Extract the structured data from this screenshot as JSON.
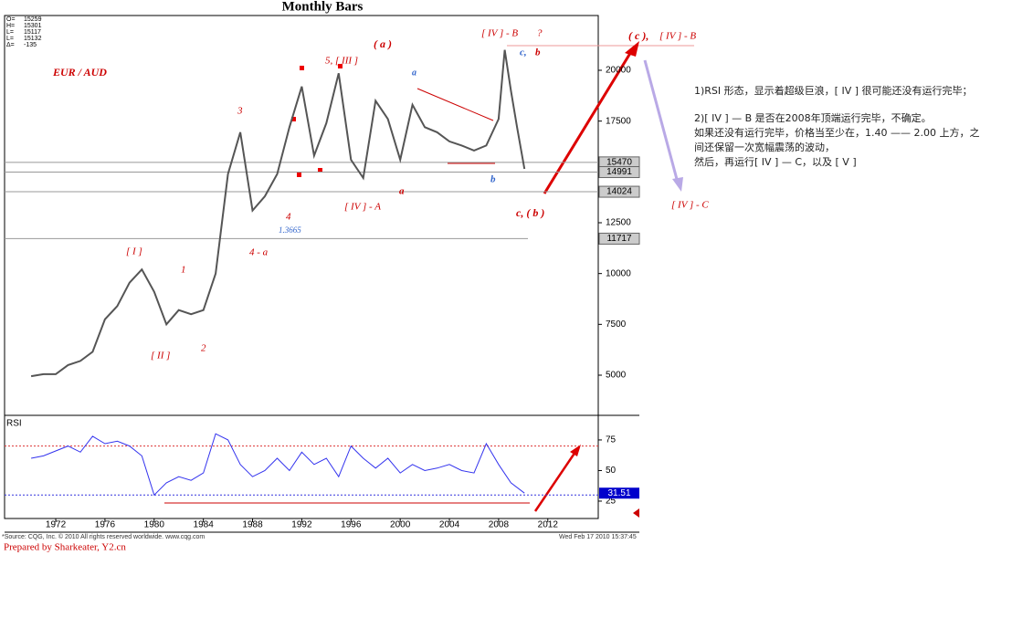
{
  "chart_data": [
    {
      "type": "line",
      "title": "Monthly Bars",
      "color": "#555555",
      "x": [
        1970,
        1971,
        1972,
        1973,
        1974,
        1975,
        1976,
        1977,
        1978,
        1979,
        1980,
        1981,
        1982,
        1983,
        1984,
        1985,
        1986,
        1987,
        1988,
        1989,
        1990,
        1991,
        1992,
        1993,
        1994,
        1995,
        1996,
        1997,
        1998,
        1999,
        2000,
        2001,
        2002,
        2003,
        2004,
        2005,
        2006,
        2007,
        2008,
        2008.5,
        2009,
        2009.5,
        2010.1
      ],
      "values": [
        4950,
        5050,
        5050,
        5500,
        5700,
        6150,
        7750,
        8400,
        9550,
        10200,
        9100,
        7500,
        8200,
        8000,
        8200,
        10000,
        14900,
        16950,
        13100,
        13800,
        14900,
        17200,
        19200,
        15800,
        17400,
        19850,
        15600,
        14700,
        18500,
        17600,
        15600,
        18300,
        17200,
        16950,
        16500,
        16300,
        16050,
        16300,
        17600,
        21000,
        19000,
        17200,
        15150
      ],
      "xlim": [
        1967.84,
        2016.1
      ],
      "ylim": [
        3024,
        22694
      ],
      "yticks": [
        5000,
        7500,
        10000,
        12500,
        15000,
        17500,
        20000
      ],
      "levels": [
        15470,
        14991,
        14024,
        11717
      ],
      "ohlc": [
        {
          "label": "O=",
          "value": 15259
        },
        {
          "label": "H=",
          "value": 15301
        },
        {
          "label": "L=",
          "value": 15117
        },
        {
          "label": "L=",
          "value": 15132
        },
        {
          "label": "Δ=",
          "value": -135
        }
      ],
      "annotations": [
        "EUR / AUD",
        "[ I ]",
        "[ II ]",
        "1",
        "2",
        "3",
        "4",
        "4 - a",
        "1.3665",
        "5, [ III ]",
        "( a )",
        "a",
        "[ IV ] - A",
        "a",
        "b",
        "c, ( b )",
        "[ IV ] - B",
        "?",
        "c,",
        "b",
        "( c ),",
        "[ IV ] - B",
        "[ IV ] - C"
      ]
    },
    {
      "type": "line",
      "title": "RSI",
      "color": "#3333ee",
      "x": [
        1970,
        1971,
        1972,
        1973,
        1974,
        1975,
        1976,
        1977,
        1978,
        1979,
        1980,
        1981,
        1982,
        1983,
        1984,
        1985,
        1986,
        1987,
        1988,
        1989,
        1990,
        1991,
        1992,
        1993,
        1994,
        1995,
        1996,
        1997,
        1998,
        1999,
        2000,
        2001,
        2002,
        2003,
        2004,
        2005,
        2006,
        2007,
        2008,
        2009,
        2010.1
      ],
      "values": [
        60,
        62,
        66,
        70,
        65,
        78,
        72,
        74,
        70,
        62,
        30,
        40,
        45,
        42,
        48,
        80,
        75,
        55,
        45,
        50,
        60,
        50,
        65,
        55,
        60,
        45,
        70,
        60,
        52,
        60,
        48,
        55,
        50,
        52,
        55,
        50,
        48,
        72,
        55,
        40,
        31.51
      ],
      "xlim": [
        1967.84,
        2016.1
      ],
      "ylim": [
        10.8,
        95.1
      ],
      "yticks": [
        25,
        50,
        75
      ],
      "xticks": [
        1972,
        1976,
        1980,
        1984,
        1988,
        1992,
        1996,
        2000,
        2004,
        2008,
        2012
      ],
      "levels": [
        70,
        30
      ]
    }
  ],
  "notes": [
    "1)RSI 形态，显示着超级巨浪，[ IV ] 很可能还没有运行完毕；",
    "2)[ IV ] — B 是否在2008年顶端运行完毕，不确定。",
    "如果还没有运行完毕，价格当至少在，1.40 —— 2.00 上方，之间还保留一次宽幅震荡的波动，",
    "然后，再运行[ IV ] — C，以及 [ V ]"
  ],
  "source": "*Source: CQG, Inc. © 2010 All rights reserved worldwide.  www.cqg.com",
  "timestamp": "Wed Feb 17 2010 15:37:45",
  "prepared_by": "Prepared by Sharkeater,  Y2.cn"
}
